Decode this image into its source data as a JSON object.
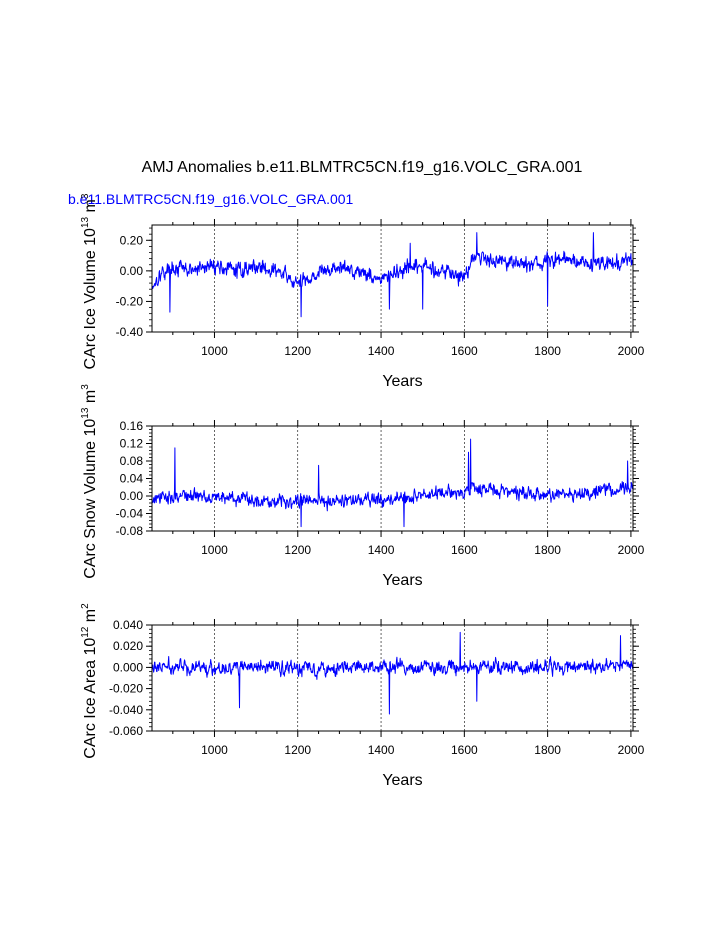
{
  "title": "AMJ Anomalies b.e11.BLMTRC5CN.f19_g16.VOLC_GRA.001",
  "subtitle": "b.e11.BLMTRC5CN.f19_g16.VOLC_GRA.001",
  "subtitle_color": "#0000ff",
  "series_color": "#0000ff",
  "chart_data": [
    {
      "type": "line",
      "id": "ice-volume",
      "ylabel": "CArc Ice Volume 10^13 m^3",
      "ylabel_parts": [
        "CArc Ice Volume 10",
        "13",
        " m",
        "3"
      ],
      "xlabel": "Years",
      "xlim": [
        850,
        2005
      ],
      "ylim": [
        -0.4,
        0.3
      ],
      "xticks": [
        1000,
        1200,
        1400,
        1600,
        1800,
        2000
      ],
      "xtick_labels": [
        "1000",
        "1200",
        "1400",
        "1600",
        "1800",
        "2000"
      ],
      "yticks": [
        -0.4,
        -0.2,
        0.0,
        0.2
      ],
      "ytick_labels": [
        "-0.40",
        "-0.20",
        "0.00",
        "0.20"
      ],
      "grid": "vertical dashed at major x ticks",
      "series": [
        {
          "name": "b.e11.BLMTRC5CN.f19_g16.VOLC_GRA.001",
          "x_start": 850,
          "x_end": 2005,
          "anchors_x": [
            850,
            870,
            900,
            950,
            1000,
            1050,
            1100,
            1150,
            1200,
            1250,
            1300,
            1350,
            1400,
            1450,
            1500,
            1550,
            1600,
            1620,
            1650,
            1700,
            1750,
            1800,
            1850,
            1900,
            1950,
            2005
          ],
          "anchors_y": [
            -0.1,
            -0.02,
            0.02,
            0.0,
            0.04,
            0.0,
            0.03,
            0.0,
            -0.09,
            -0.01,
            0.02,
            0.0,
            -0.06,
            0.0,
            0.03,
            0.0,
            -0.04,
            0.1,
            0.08,
            0.07,
            0.04,
            0.06,
            0.08,
            0.05,
            0.05,
            0.06
          ],
          "noise_amplitude": 0.09,
          "peaks": [
            [
              1208,
              -0.3
            ],
            [
              893,
              -0.27
            ],
            [
              1420,
              -0.25
            ],
            [
              1500,
              -0.25
            ],
            [
              1630,
              0.25
            ],
            [
              1910,
              0.25
            ],
            [
              1800,
              -0.23
            ],
            [
              1470,
              0.18
            ]
          ]
        }
      ]
    },
    {
      "type": "line",
      "id": "snow-volume",
      "ylabel": "CArc Snow Volume 10^13 m^3",
      "ylabel_parts": [
        "CArc Snow Volume 10",
        "13",
        " m",
        "3"
      ],
      "xlabel": "Years",
      "xlim": [
        850,
        2005
      ],
      "ylim": [
        -0.08,
        0.16
      ],
      "xticks": [
        1000,
        1200,
        1400,
        1600,
        1800,
        2000
      ],
      "xtick_labels": [
        "1000",
        "1200",
        "1400",
        "1600",
        "1800",
        "2000"
      ],
      "yticks": [
        -0.08,
        -0.04,
        0.0,
        0.04,
        0.08,
        0.12,
        0.16
      ],
      "ytick_labels": [
        "-0.08",
        "-0.04",
        "0.00",
        "0.04",
        "0.08",
        "0.12",
        "0.16"
      ],
      "grid": "vertical dashed at major x ticks",
      "series": [
        {
          "name": "b.e11.BLMTRC5CN.f19_g16.VOLC_GRA.001",
          "x_start": 850,
          "x_end": 2005,
          "anchors_x": [
            850,
            900,
            1000,
            1100,
            1200,
            1300,
            1400,
            1500,
            1600,
            1620,
            1700,
            1800,
            1900,
            2005
          ],
          "anchors_y": [
            -0.01,
            0.0,
            0.0,
            -0.01,
            -0.01,
            -0.01,
            -0.01,
            0.0,
            0.01,
            0.02,
            0.01,
            0.0,
            0.01,
            0.02
          ],
          "noise_amplitude": 0.028,
          "peaks": [
            [
              1615,
              0.13
            ],
            [
              905,
              0.11
            ],
            [
              1610,
              0.1
            ],
            [
              1992,
              0.08
            ],
            [
              1208,
              -0.07
            ],
            [
              1455,
              -0.07
            ],
            [
              1250,
              0.07
            ]
          ]
        }
      ]
    },
    {
      "type": "line",
      "id": "ice-area",
      "ylabel": "CArc Ice Area 10^12 m^2",
      "ylabel_parts": [
        "CArc Ice Area 10",
        "12",
        " m",
        "2"
      ],
      "xlabel": "Years",
      "xlim": [
        850,
        2005
      ],
      "ylim": [
        -0.06,
        0.04
      ],
      "xticks": [
        1000,
        1200,
        1400,
        1600,
        1800,
        2000
      ],
      "xtick_labels": [
        "1000",
        "1200",
        "1400",
        "1600",
        "1800",
        "2000"
      ],
      "yticks": [
        -0.06,
        -0.04,
        -0.02,
        0.0,
        0.02,
        0.04
      ],
      "ytick_labels": [
        "-0.060",
        "-0.040",
        "-0.020",
        "0.000",
        "0.020",
        "0.040"
      ],
      "grid": "vertical dashed at major x ticks",
      "series": [
        {
          "name": "b.e11.BLMTRC5CN.f19_g16.VOLC_GRA.001",
          "x_start": 850,
          "x_end": 2005,
          "anchors_x": [
            850,
            1000,
            1200,
            1400,
            1600,
            1800,
            2005
          ],
          "anchors_y": [
            0.0,
            0.0,
            0.0,
            0.0,
            0.0,
            0.0,
            0.002
          ],
          "noise_amplitude": 0.012,
          "peaks": [
            [
              1420,
              -0.044
            ],
            [
              1590,
              0.033
            ],
            [
              1975,
              0.03
            ],
            [
              1630,
              -0.032
            ],
            [
              1060,
              -0.038
            ]
          ]
        }
      ]
    }
  ]
}
